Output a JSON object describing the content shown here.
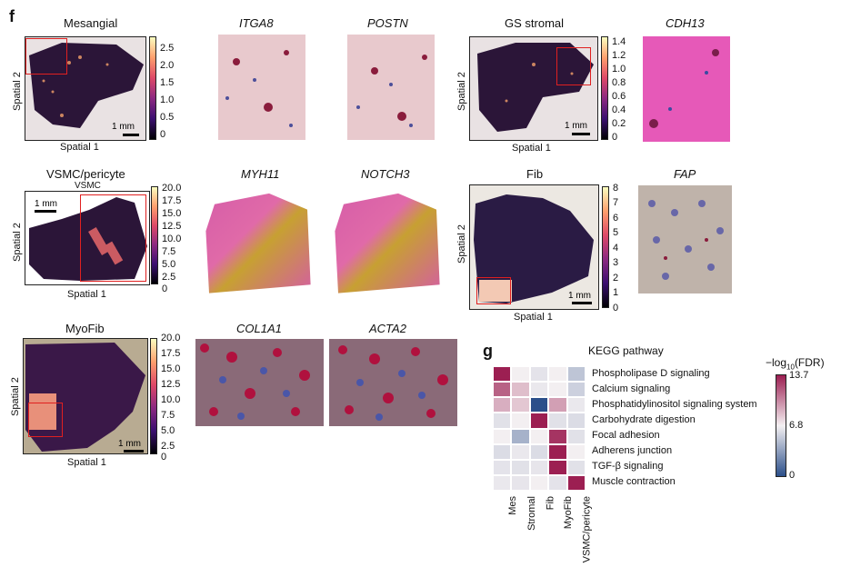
{
  "panel_f": {
    "letter": "f",
    "spatial1": "Spatial 1",
    "spatial2": "Spatial 2",
    "scale": "1 mm",
    "rows": [
      {
        "main": "Mesangial",
        "genes": [
          "ITGA8",
          "POSTN"
        ],
        "cbar_ticks": [
          "2.5",
          "2.0",
          "1.5",
          "1.0",
          "0.5",
          "0"
        ],
        "colormap": "magma"
      },
      {
        "main": "GS stromal",
        "genes": [
          "CDH13"
        ],
        "cbar_ticks": [
          "1.4",
          "1.2",
          "1.0",
          "0.8",
          "0.6",
          "0.4",
          "0.2",
          "0"
        ],
        "colormap": "magma"
      },
      {
        "main": "VSMC/pericyte",
        "sublabel": "VSMC",
        "genes": [
          "MYH11",
          "NOTCH3"
        ],
        "cbar_ticks": [
          "20.0",
          "17.5",
          "15.0",
          "12.5",
          "10.0",
          "7.5",
          "5.0",
          "2.5",
          "0"
        ],
        "colormap": "magma"
      },
      {
        "main": "Fib",
        "genes": [
          "FAP"
        ],
        "cbar_ticks": [
          "8",
          "7",
          "6",
          "5",
          "4",
          "3",
          "2",
          "1",
          "0"
        ],
        "colormap": "magma"
      },
      {
        "main": "MyoFib",
        "genes": [
          "COL1A1",
          "ACTA2"
        ],
        "cbar_ticks": [
          "20.0",
          "17.5",
          "15.0",
          "12.5",
          "10.0",
          "7.5",
          "5.0",
          "2.5",
          "0"
        ],
        "colormap": "magma"
      }
    ]
  },
  "panel_g": {
    "letter": "g",
    "chart_data": {
      "type": "heatmap",
      "title": "KEGG pathway",
      "rows": [
        "Phospholipase D signaling",
        "Calcium signaling",
        "Phosphatidylinositol signaling system",
        "Carbohydrate digestion",
        "Focal adhesion",
        "Adherens junction",
        "TGF-β signaling",
        "Muscle contraction"
      ],
      "columns": [
        "Mes",
        "Stromal",
        "Fib",
        "MyoFib",
        "VSMC/pericyte"
      ],
      "values": [
        [
          13.7,
          6.8,
          6.3,
          6.8,
          5.0
        ],
        [
          11.5,
          8.5,
          6.5,
          6.8,
          5.5
        ],
        [
          9.0,
          8.2,
          0.0,
          9.5,
          6.5
        ],
        [
          6.2,
          6.8,
          13.7,
          6.2,
          6.0
        ],
        [
          6.8,
          4.2,
          6.8,
          13.0,
          6.2
        ],
        [
          6.0,
          6.5,
          6.0,
          13.7,
          6.8
        ],
        [
          6.3,
          6.2,
          6.4,
          13.7,
          6.2
        ],
        [
          6.5,
          6.4,
          6.8,
          6.3,
          13.7
        ]
      ],
      "colorbar": {
        "label_pre": "−log",
        "label_sub": "10",
        "label_post": "(FDR)",
        "ticks": [
          "13.7",
          "6.8",
          "0"
        ],
        "range": [
          0,
          13.7
        ],
        "colors": {
          "low": "#2b4f8a",
          "mid": "#f4f0f2",
          "high": "#9c1f52"
        }
      }
    }
  }
}
